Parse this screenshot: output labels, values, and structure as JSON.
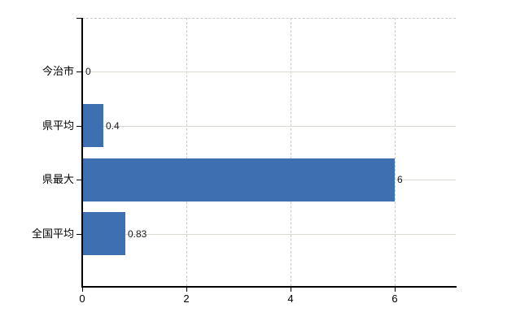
{
  "chart_data": {
    "type": "bar",
    "orientation": "horizontal",
    "title": "",
    "xlabel": "",
    "ylabel": "",
    "categories": [
      "今治市",
      "県平均",
      "県最大",
      "全国平均"
    ],
    "values": [
      0,
      0.4,
      6,
      0.83
    ],
    "value_labels": [
      "0",
      "0.4",
      "6",
      "0.83"
    ],
    "x_ticks": [
      0,
      2,
      4,
      6
    ],
    "x_tick_labels": [
      "0",
      "2",
      "4",
      "6"
    ],
    "xlim": [
      0,
      7.17
    ],
    "legend": null,
    "grid": {
      "horizontal": "solid",
      "vertical": "dashed",
      "top_border": "dashed"
    },
    "colors": {
      "bar": "#3e6fb0",
      "axis": "#000000",
      "h_gridline": "#d5dcd2",
      "v_gridline": "#c9cace",
      "text": "#000000",
      "value_label_text": "#1a1a1a",
      "background": "#ffffff"
    }
  }
}
